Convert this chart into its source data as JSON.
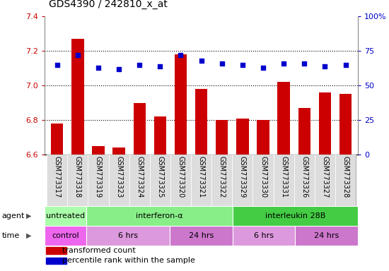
{
  "title": "GDS4390 / 242810_x_at",
  "samples": [
    "GSM773317",
    "GSM773318",
    "GSM773319",
    "GSM773323",
    "GSM773324",
    "GSM773325",
    "GSM773320",
    "GSM773321",
    "GSM773322",
    "GSM773329",
    "GSM773330",
    "GSM773331",
    "GSM773326",
    "GSM773327",
    "GSM773328"
  ],
  "transformed_count": [
    6.78,
    7.27,
    6.65,
    6.64,
    6.9,
    6.82,
    7.18,
    6.98,
    6.8,
    6.81,
    6.8,
    7.02,
    6.87,
    6.96,
    6.95
  ],
  "percentile_rank": [
    65,
    72,
    63,
    62,
    65,
    64,
    72,
    68,
    66,
    65,
    63,
    66,
    66,
    64,
    65
  ],
  "ylim_left": [
    6.6,
    7.4
  ],
  "ylim_right": [
    0,
    100
  ],
  "yticks_left": [
    6.6,
    6.8,
    7.0,
    7.2,
    7.4
  ],
  "yticks_right": [
    0,
    25,
    50,
    75,
    100
  ],
  "ytick_labels_right": [
    "0",
    "25",
    "50",
    "75",
    "100%"
  ],
  "bar_color": "#cc0000",
  "dot_color": "#0000cc",
  "agent_groups": [
    {
      "label": "untreated",
      "start": 0,
      "end": 2,
      "color": "#aaffaa"
    },
    {
      "label": "interferon-α",
      "start": 2,
      "end": 9,
      "color": "#88ee88"
    },
    {
      "label": "interleukin 28B",
      "start": 9,
      "end": 15,
      "color": "#44cc44"
    }
  ],
  "time_groups": [
    {
      "label": "control",
      "start": 0,
      "end": 2,
      "color": "#ee66ee"
    },
    {
      "label": "6 hrs",
      "start": 2,
      "end": 6,
      "color": "#dd99dd"
    },
    {
      "label": "24 hrs",
      "start": 6,
      "end": 9,
      "color": "#cc77cc"
    },
    {
      "label": "6 hrs",
      "start": 9,
      "end": 12,
      "color": "#dd99dd"
    },
    {
      "label": "24 hrs",
      "start": 12,
      "end": 15,
      "color": "#cc77cc"
    }
  ],
  "sample_box_color": "#dddddd",
  "tick_color_left": "#cc0000",
  "tick_color_right": "#0000cc",
  "grid_color": "#000000",
  "dotted_lines": [
    6.8,
    7.0,
    7.2
  ]
}
